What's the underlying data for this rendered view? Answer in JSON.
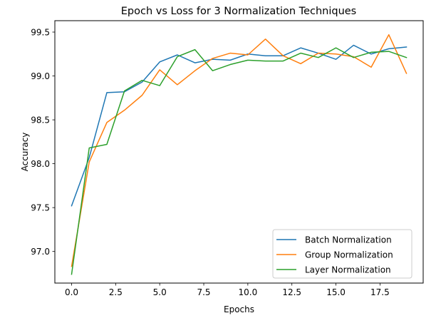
{
  "chart_data": {
    "type": "line",
    "title": "Epoch vs Loss for 3 Normalization Techniques",
    "xlabel": "Epochs",
    "ylabel": "Accuracy",
    "xlim": [
      -0.95,
      19.95
    ],
    "ylim": [
      96.64,
      99.63
    ],
    "xticks": [
      0.0,
      2.5,
      5.0,
      7.5,
      10.0,
      12.5,
      15.0,
      17.5
    ],
    "xtick_labels": [
      "0.0",
      "2.5",
      "5.0",
      "7.5",
      "10.0",
      "12.5",
      "15.0",
      "17.5"
    ],
    "yticks": [
      97.0,
      97.5,
      98.0,
      98.5,
      99.0,
      99.5
    ],
    "ytick_labels": [
      "97.0",
      "97.5",
      "98.0",
      "98.5",
      "99.0",
      "99.5"
    ],
    "grid": false,
    "legend_position": "lower-right",
    "x": [
      0,
      1,
      2,
      3,
      4,
      5,
      6,
      7,
      8,
      9,
      10,
      11,
      12,
      13,
      14,
      15,
      16,
      17,
      18,
      19
    ],
    "series": [
      {
        "name": "Batch Normalization",
        "color": "#1f77b4",
        "values": [
          97.52,
          98.07,
          98.81,
          98.82,
          98.93,
          99.16,
          99.24,
          99.15,
          99.19,
          99.18,
          99.25,
          99.23,
          99.23,
          99.32,
          99.26,
          99.19,
          99.35,
          99.25,
          99.31,
          99.33
        ]
      },
      {
        "name": "Group Normalization",
        "color": "#ff7f0e",
        "values": [
          96.83,
          98.02,
          98.47,
          98.61,
          98.78,
          99.07,
          98.9,
          99.06,
          99.2,
          99.26,
          99.24,
          99.42,
          99.23,
          99.14,
          99.26,
          99.25,
          99.22,
          99.1,
          99.47,
          99.03
        ]
      },
      {
        "name": "Layer Normalization",
        "color": "#2ca02c",
        "values": [
          96.74,
          98.18,
          98.22,
          98.83,
          98.95,
          98.89,
          99.22,
          99.3,
          99.06,
          99.13,
          99.18,
          99.17,
          99.17,
          99.26,
          99.21,
          99.32,
          99.21,
          99.27,
          99.28,
          99.21
        ]
      }
    ]
  }
}
